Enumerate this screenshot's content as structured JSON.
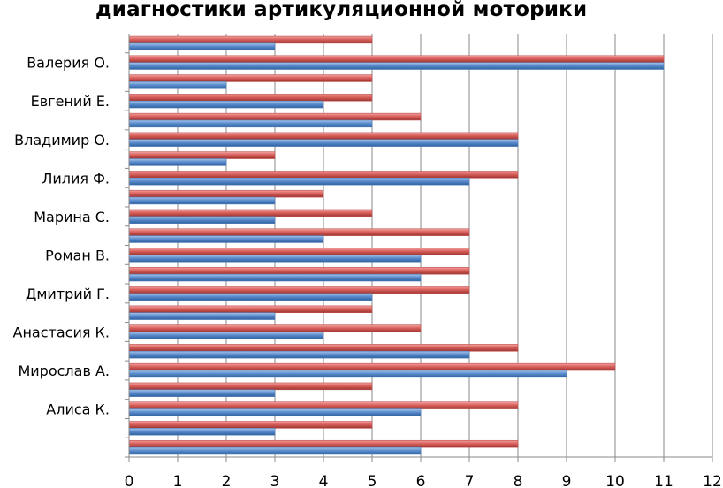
{
  "chart_data": {
    "type": "bar",
    "orientation": "horizontal",
    "title": "диагностики артикуляционной моторики",
    "xlim": [
      0,
      12
    ],
    "x_ticks": [
      0,
      1,
      2,
      3,
      4,
      5,
      6,
      7,
      8,
      9,
      10,
      11,
      12
    ],
    "grid": true,
    "categories": [
      "Алиса К.",
      "Мирослав А.",
      "Анастасия К.",
      "Дмитрий Г.",
      "Роман В.",
      "Марина С.",
      "Лилия Ф.",
      "Владимир О.",
      "Евгений Е.",
      "Валерия О."
    ],
    "rows": [
      {
        "label": "",
        "red": 8,
        "blue": 6
      },
      {
        "label": "",
        "red": 5,
        "blue": 3
      },
      {
        "label": "Алиса К.",
        "red": 8,
        "blue": 6
      },
      {
        "label": "",
        "red": 5,
        "blue": 3
      },
      {
        "label": "Мирослав А.",
        "red": 10,
        "blue": 9
      },
      {
        "label": "",
        "red": 8,
        "blue": 7
      },
      {
        "label": "Анастасия К.",
        "red": 6,
        "blue": 4
      },
      {
        "label": "",
        "red": 5,
        "blue": 3
      },
      {
        "label": "Дмитрий Г.",
        "red": 7,
        "blue": 5
      },
      {
        "label": "",
        "red": 7,
        "blue": 6
      },
      {
        "label": "Роман В.",
        "red": 7,
        "blue": 6
      },
      {
        "label": "",
        "red": 7,
        "blue": 4
      },
      {
        "label": "Марина С.",
        "red": 5,
        "blue": 3
      },
      {
        "label": "",
        "red": 4,
        "blue": 3
      },
      {
        "label": "Лилия Ф.",
        "red": 8,
        "blue": 7
      },
      {
        "label": "",
        "red": 3,
        "blue": 2
      },
      {
        "label": "Владимир О.",
        "red": 8,
        "blue": 8
      },
      {
        "label": "",
        "red": 6,
        "blue": 5
      },
      {
        "label": "Евгений Е.",
        "red": 5,
        "blue": 4
      },
      {
        "label": "",
        "red": 5,
        "blue": 2
      },
      {
        "label": "Валерия О.",
        "red": 11,
        "blue": 11
      },
      {
        "label": "",
        "red": 5,
        "blue": 3
      }
    ],
    "series_colors": {
      "red": "#c0504d",
      "blue": "#4f81bd"
    }
  }
}
